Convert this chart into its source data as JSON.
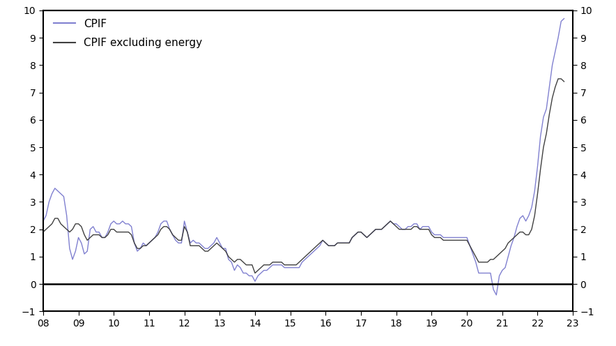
{
  "cpif_color": "#8080d0",
  "cpif_ex_color": "#404040",
  "ylim": [
    -1,
    10
  ],
  "yticks": [
    -1,
    0,
    1,
    2,
    3,
    4,
    5,
    6,
    7,
    8,
    9,
    10
  ],
  "xlim_start": 2008.0,
  "xlim_end": 2023.0,
  "xtick_labels": [
    "08",
    "09",
    "10",
    "11",
    "12",
    "13",
    "14",
    "15",
    "16",
    "17",
    "18",
    "19",
    "20",
    "21",
    "22",
    "23"
  ],
  "legend_cpif": "CPIF",
  "legend_cpif_ex": "CPIF excluding energy",
  "cpif": {
    "dates": [
      2008.0,
      2008.083,
      2008.167,
      2008.25,
      2008.333,
      2008.417,
      2008.5,
      2008.583,
      2008.667,
      2008.75,
      2008.833,
      2008.917,
      2009.0,
      2009.083,
      2009.167,
      2009.25,
      2009.333,
      2009.417,
      2009.5,
      2009.583,
      2009.667,
      2009.75,
      2009.833,
      2009.917,
      2010.0,
      2010.083,
      2010.167,
      2010.25,
      2010.333,
      2010.417,
      2010.5,
      2010.583,
      2010.667,
      2010.75,
      2010.833,
      2010.917,
      2011.0,
      2011.083,
      2011.167,
      2011.25,
      2011.333,
      2011.417,
      2011.5,
      2011.583,
      2011.667,
      2011.75,
      2011.833,
      2011.917,
      2012.0,
      2012.083,
      2012.167,
      2012.25,
      2012.333,
      2012.417,
      2012.5,
      2012.583,
      2012.667,
      2012.75,
      2012.833,
      2012.917,
      2013.0,
      2013.083,
      2013.167,
      2013.25,
      2013.333,
      2013.417,
      2013.5,
      2013.583,
      2013.667,
      2013.75,
      2013.833,
      2013.917,
      2014.0,
      2014.083,
      2014.167,
      2014.25,
      2014.333,
      2014.417,
      2014.5,
      2014.583,
      2014.667,
      2014.75,
      2014.833,
      2014.917,
      2015.0,
      2015.083,
      2015.167,
      2015.25,
      2015.333,
      2015.417,
      2015.5,
      2015.583,
      2015.667,
      2015.75,
      2015.833,
      2015.917,
      2016.0,
      2016.083,
      2016.167,
      2016.25,
      2016.333,
      2016.417,
      2016.5,
      2016.583,
      2016.667,
      2016.75,
      2016.833,
      2016.917,
      2017.0,
      2017.083,
      2017.167,
      2017.25,
      2017.333,
      2017.417,
      2017.5,
      2017.583,
      2017.667,
      2017.75,
      2017.833,
      2017.917,
      2018.0,
      2018.083,
      2018.167,
      2018.25,
      2018.333,
      2018.417,
      2018.5,
      2018.583,
      2018.667,
      2018.75,
      2018.833,
      2018.917,
      2019.0,
      2019.083,
      2019.167,
      2019.25,
      2019.333,
      2019.417,
      2019.5,
      2019.583,
      2019.667,
      2019.75,
      2019.833,
      2019.917,
      2020.0,
      2020.083,
      2020.167,
      2020.25,
      2020.333,
      2020.417,
      2020.5,
      2020.583,
      2020.667,
      2020.75,
      2020.833,
      2020.917,
      2021.0,
      2021.083,
      2021.167,
      2021.25,
      2021.333,
      2021.417,
      2021.5,
      2021.583,
      2021.667,
      2021.75,
      2021.833,
      2021.917,
      2022.0,
      2022.083,
      2022.167,
      2022.25,
      2022.333,
      2022.417,
      2022.5,
      2022.583,
      2022.667,
      2022.75
    ],
    "values": [
      2.3,
      2.5,
      3.0,
      3.3,
      3.5,
      3.4,
      3.3,
      3.2,
      2.5,
      1.3,
      0.9,
      1.2,
      1.7,
      1.5,
      1.1,
      1.2,
      2.0,
      2.1,
      1.9,
      1.9,
      1.7,
      1.7,
      1.9,
      2.2,
      2.3,
      2.2,
      2.2,
      2.3,
      2.2,
      2.2,
      2.1,
      1.5,
      1.2,
      1.3,
      1.5,
      1.4,
      1.5,
      1.6,
      1.7,
      1.9,
      2.2,
      2.3,
      2.3,
      2.0,
      1.8,
      1.6,
      1.5,
      1.5,
      2.3,
      1.9,
      1.5,
      1.6,
      1.5,
      1.5,
      1.4,
      1.3,
      1.3,
      1.4,
      1.5,
      1.7,
      1.5,
      1.3,
      1.3,
      0.9,
      0.8,
      0.5,
      0.7,
      0.6,
      0.4,
      0.4,
      0.3,
      0.3,
      0.1,
      0.3,
      0.4,
      0.5,
      0.5,
      0.6,
      0.7,
      0.7,
      0.7,
      0.7,
      0.6,
      0.6,
      0.6,
      0.6,
      0.6,
      0.6,
      0.8,
      0.9,
      1.0,
      1.1,
      1.2,
      1.3,
      1.4,
      1.6,
      1.5,
      1.4,
      1.4,
      1.4,
      1.5,
      1.5,
      1.5,
      1.5,
      1.5,
      1.7,
      1.8,
      1.9,
      1.9,
      1.8,
      1.7,
      1.8,
      1.9,
      2.0,
      2.0,
      2.0,
      2.1,
      2.2,
      2.3,
      2.2,
      2.2,
      2.1,
      2.0,
      2.0,
      2.1,
      2.1,
      2.2,
      2.2,
      2.0,
      2.1,
      2.1,
      2.1,
      1.9,
      1.8,
      1.8,
      1.8,
      1.7,
      1.7,
      1.7,
      1.7,
      1.7,
      1.7,
      1.7,
      1.7,
      1.7,
      1.4,
      1.1,
      0.8,
      0.4,
      0.4,
      0.4,
      0.4,
      0.4,
      -0.2,
      -0.4,
      0.3,
      0.5,
      0.6,
      1.0,
      1.4,
      1.7,
      2.1,
      2.4,
      2.5,
      2.3,
      2.5,
      2.8,
      3.4,
      4.3,
      5.4,
      6.1,
      6.4,
      7.2,
      8.0,
      8.5,
      9.0,
      9.6,
      9.7
    ]
  },
  "cpif_ex": {
    "dates": [
      2008.0,
      2008.083,
      2008.167,
      2008.25,
      2008.333,
      2008.417,
      2008.5,
      2008.583,
      2008.667,
      2008.75,
      2008.833,
      2008.917,
      2009.0,
      2009.083,
      2009.167,
      2009.25,
      2009.333,
      2009.417,
      2009.5,
      2009.583,
      2009.667,
      2009.75,
      2009.833,
      2009.917,
      2010.0,
      2010.083,
      2010.167,
      2010.25,
      2010.333,
      2010.417,
      2010.5,
      2010.583,
      2010.667,
      2010.75,
      2010.833,
      2010.917,
      2011.0,
      2011.083,
      2011.167,
      2011.25,
      2011.333,
      2011.417,
      2011.5,
      2011.583,
      2011.667,
      2011.75,
      2011.833,
      2011.917,
      2012.0,
      2012.083,
      2012.167,
      2012.25,
      2012.333,
      2012.417,
      2012.5,
      2012.583,
      2012.667,
      2012.75,
      2012.833,
      2012.917,
      2013.0,
      2013.083,
      2013.167,
      2013.25,
      2013.333,
      2013.417,
      2013.5,
      2013.583,
      2013.667,
      2013.75,
      2013.833,
      2013.917,
      2014.0,
      2014.083,
      2014.167,
      2014.25,
      2014.333,
      2014.417,
      2014.5,
      2014.583,
      2014.667,
      2014.75,
      2014.833,
      2014.917,
      2015.0,
      2015.083,
      2015.167,
      2015.25,
      2015.333,
      2015.417,
      2015.5,
      2015.583,
      2015.667,
      2015.75,
      2015.833,
      2015.917,
      2016.0,
      2016.083,
      2016.167,
      2016.25,
      2016.333,
      2016.417,
      2016.5,
      2016.583,
      2016.667,
      2016.75,
      2016.833,
      2016.917,
      2017.0,
      2017.083,
      2017.167,
      2017.25,
      2017.333,
      2017.417,
      2017.5,
      2017.583,
      2017.667,
      2017.75,
      2017.833,
      2017.917,
      2018.0,
      2018.083,
      2018.167,
      2018.25,
      2018.333,
      2018.417,
      2018.5,
      2018.583,
      2018.667,
      2018.75,
      2018.833,
      2018.917,
      2019.0,
      2019.083,
      2019.167,
      2019.25,
      2019.333,
      2019.417,
      2019.5,
      2019.583,
      2019.667,
      2019.75,
      2019.833,
      2019.917,
      2020.0,
      2020.083,
      2020.167,
      2020.25,
      2020.333,
      2020.417,
      2020.5,
      2020.583,
      2020.667,
      2020.75,
      2020.833,
      2020.917,
      2021.0,
      2021.083,
      2021.167,
      2021.25,
      2021.333,
      2021.417,
      2021.5,
      2021.583,
      2021.667,
      2021.75,
      2021.833,
      2021.917,
      2022.0,
      2022.083,
      2022.167,
      2022.25,
      2022.333,
      2022.417,
      2022.5,
      2022.583,
      2022.667,
      2022.75
    ],
    "values": [
      1.9,
      2.0,
      2.1,
      2.2,
      2.4,
      2.4,
      2.2,
      2.1,
      2.0,
      1.9,
      2.0,
      2.2,
      2.2,
      2.1,
      1.8,
      1.6,
      1.7,
      1.8,
      1.8,
      1.8,
      1.7,
      1.7,
      1.8,
      2.0,
      2.0,
      1.9,
      1.9,
      1.9,
      1.9,
      1.9,
      1.8,
      1.5,
      1.3,
      1.3,
      1.4,
      1.4,
      1.5,
      1.6,
      1.7,
      1.8,
      2.0,
      2.1,
      2.1,
      2.0,
      1.8,
      1.7,
      1.6,
      1.6,
      2.1,
      1.9,
      1.4,
      1.4,
      1.4,
      1.4,
      1.3,
      1.2,
      1.2,
      1.3,
      1.4,
      1.5,
      1.4,
      1.3,
      1.2,
      1.0,
      0.9,
      0.8,
      0.9,
      0.9,
      0.8,
      0.7,
      0.7,
      0.7,
      0.4,
      0.5,
      0.6,
      0.7,
      0.7,
      0.7,
      0.8,
      0.8,
      0.8,
      0.8,
      0.7,
      0.7,
      0.7,
      0.7,
      0.7,
      0.8,
      0.9,
      1.0,
      1.1,
      1.2,
      1.3,
      1.4,
      1.5,
      1.6,
      1.5,
      1.4,
      1.4,
      1.4,
      1.5,
      1.5,
      1.5,
      1.5,
      1.5,
      1.7,
      1.8,
      1.9,
      1.9,
      1.8,
      1.7,
      1.8,
      1.9,
      2.0,
      2.0,
      2.0,
      2.1,
      2.2,
      2.3,
      2.2,
      2.1,
      2.0,
      2.0,
      2.0,
      2.0,
      2.0,
      2.1,
      2.1,
      2.0,
      2.0,
      2.0,
      2.0,
      1.8,
      1.7,
      1.7,
      1.7,
      1.6,
      1.6,
      1.6,
      1.6,
      1.6,
      1.6,
      1.6,
      1.6,
      1.6,
      1.4,
      1.2,
      1.0,
      0.8,
      0.8,
      0.8,
      0.8,
      0.9,
      0.9,
      1.0,
      1.1,
      1.2,
      1.3,
      1.5,
      1.6,
      1.7,
      1.8,
      1.9,
      1.9,
      1.8,
      1.8,
      2.0,
      2.5,
      3.3,
      4.2,
      5.0,
      5.5,
      6.2,
      6.8,
      7.2,
      7.5,
      7.5,
      7.4
    ]
  }
}
